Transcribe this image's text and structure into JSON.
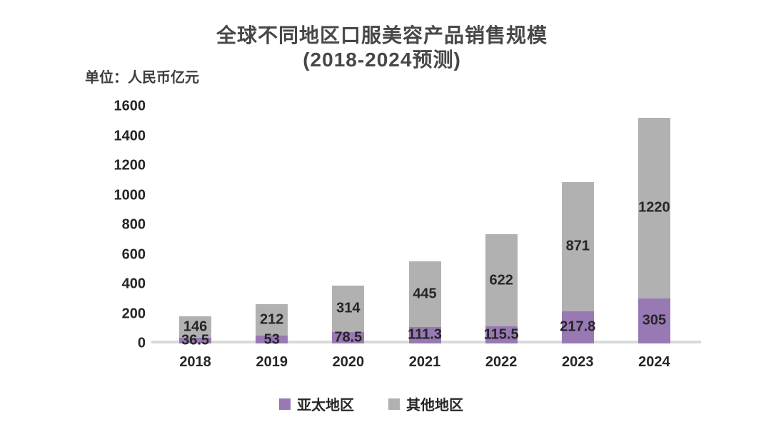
{
  "title": {
    "line1": "全球不同地区口服美容产品销售规模",
    "line2": "(2018-2024预测)"
  },
  "unit_label": "单位：人民币亿元",
  "chart_data": {
    "type": "bar",
    "stacked": true,
    "title": "全球不同地区口服美容产品销售规模 (2018-2024预测)",
    "unit": "单位：人民币亿元",
    "categories": [
      "2018",
      "2019",
      "2020",
      "2021",
      "2022",
      "2023",
      "2024"
    ],
    "series": [
      {
        "name": "亚太地区",
        "color": "#9879b3",
        "values": [
          36.5,
          53,
          78.5,
          111.3,
          115.5,
          217.8,
          305
        ]
      },
      {
        "name": "其他地区",
        "color": "#b1b1b1",
        "values": [
          146,
          212,
          314,
          445,
          622,
          871,
          1220
        ]
      }
    ],
    "yticks": [
      0,
      200,
      400,
      600,
      800,
      1000,
      1200,
      1400,
      1600
    ],
    "ylim": [
      0,
      1600
    ],
    "xlabel": "",
    "ylabel": "单位：人民币亿元",
    "grid": false,
    "data_labels": true,
    "legend_position": "bottom"
  },
  "colors": {
    "background": "#ffffff",
    "title_text": "#474747",
    "label_text": "#262626",
    "apac_purple": "#9879b3",
    "other_gray": "#b1b1b1",
    "axis_line": "#d9d9d9"
  }
}
